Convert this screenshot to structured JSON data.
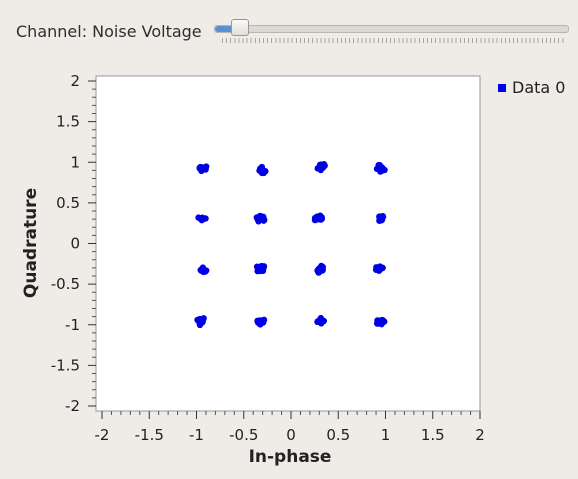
{
  "slider": {
    "label": "Channel: Noise Voltage",
    "value_fraction": 0.07
  },
  "chart_data": {
    "type": "scatter",
    "xlabel": "In-phase",
    "ylabel": "Quadrature",
    "xlim": [
      -2,
      2
    ],
    "ylim": [
      -2,
      2
    ],
    "xticks": [
      "-2",
      "-1.5",
      "-1",
      "-0.5",
      "0",
      "0.5",
      "1",
      "1.5",
      "2"
    ],
    "yticks": [
      "2",
      "1.5",
      "1",
      "0.5",
      "0",
      "-0.5",
      "-1",
      "-1.5",
      "-2"
    ],
    "legend": {
      "position": "top-right"
    },
    "series": [
      {
        "name": "Data 0",
        "color": "#0000e6",
        "points": [
          [
            -0.94,
            0.93
          ],
          [
            -0.31,
            0.91
          ],
          [
            0.32,
            0.94
          ],
          [
            0.95,
            0.93
          ],
          [
            -0.94,
            0.31
          ],
          [
            -0.32,
            0.31
          ],
          [
            0.3,
            0.3
          ],
          [
            0.95,
            0.32
          ],
          [
            -0.93,
            -0.32
          ],
          [
            -0.32,
            -0.31
          ],
          [
            0.32,
            -0.32
          ],
          [
            0.93,
            -0.31
          ],
          [
            -0.95,
            -0.96
          ],
          [
            -0.31,
            -0.96
          ],
          [
            0.31,
            -0.95
          ],
          [
            0.94,
            -0.96
          ]
        ]
      }
    ]
  }
}
